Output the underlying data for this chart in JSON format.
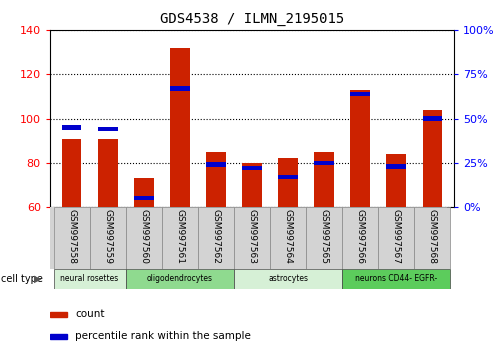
{
  "title": "GDS4538 / ILMN_2195015",
  "samples": [
    "GSM997558",
    "GSM997559",
    "GSM997560",
    "GSM997561",
    "GSM997562",
    "GSM997563",
    "GSM997564",
    "GSM997565",
    "GSM997566",
    "GSM997567",
    "GSM997568"
  ],
  "count_values": [
    91,
    91,
    73,
    132,
    85,
    80,
    82,
    85,
    113,
    84,
    104
  ],
  "percentile_values": [
    45,
    44,
    5,
    67,
    24,
    22,
    17,
    25,
    64,
    23,
    50
  ],
  "cell_type_groups": [
    {
      "label": "neural rosettes",
      "start": 0,
      "end": 2,
      "color": "#d6f0d6"
    },
    {
      "label": "oligodendrocytes",
      "start": 2,
      "end": 5,
      "color": "#8fda8f"
    },
    {
      "label": "astrocytes",
      "start": 5,
      "end": 8,
      "color": "#d6f0d6"
    },
    {
      "label": "neurons CD44- EGFR-",
      "start": 8,
      "end": 11,
      "color": "#5ccc5c"
    }
  ],
  "ylim_left": [
    60,
    140
  ],
  "ylim_right": [
    0,
    100
  ],
  "yticks_left": [
    60,
    80,
    100,
    120,
    140
  ],
  "yticks_right": [
    0,
    25,
    50,
    75,
    100
  ],
  "ytick_labels_right": [
    "0%",
    "25%",
    "50%",
    "75%",
    "100%"
  ],
  "bar_color": "#cc2200",
  "percentile_color": "#0000cc",
  "bar_width": 0.55,
  "background_color": "#ffffff",
  "tick_area_color": "#d3d3d3",
  "cell_type_label": "cell type",
  "legend_count": "count",
  "legend_percentile": "percentile rank within the sample",
  "title_fontsize": 10,
  "label_fontsize": 6.5,
  "legend_fontsize": 7.5
}
